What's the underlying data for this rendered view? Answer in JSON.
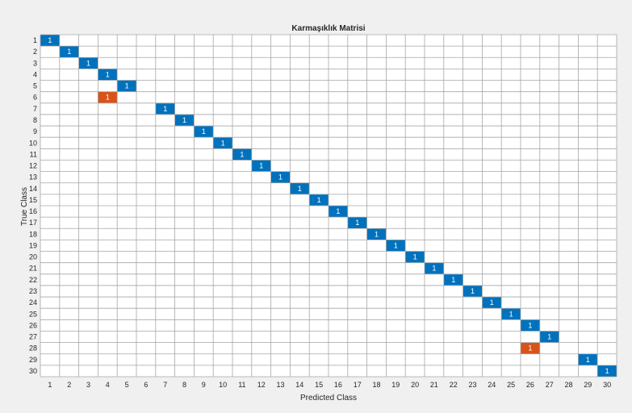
{
  "chart_data": {
    "type": "heatmap",
    "title": "Karmaşıklık Matrisi",
    "xlabel": "Predicted Class",
    "ylabel": "True Class",
    "x_categories": [
      "1",
      "2",
      "3",
      "4",
      "5",
      "6",
      "7",
      "8",
      "9",
      "10",
      "11",
      "12",
      "13",
      "14",
      "15",
      "16",
      "17",
      "18",
      "19",
      "20",
      "21",
      "22",
      "23",
      "24",
      "25",
      "26",
      "27",
      "28",
      "29",
      "30"
    ],
    "y_categories": [
      "1",
      "2",
      "3",
      "4",
      "5",
      "6",
      "7",
      "8",
      "9",
      "10",
      "11",
      "12",
      "13",
      "14",
      "15",
      "16",
      "17",
      "18",
      "19",
      "20",
      "21",
      "22",
      "23",
      "24",
      "25",
      "26",
      "27",
      "28",
      "29",
      "30"
    ],
    "cells": [
      {
        "true": 1,
        "predicted": 1,
        "value": 1
      },
      {
        "true": 2,
        "predicted": 2,
        "value": 1
      },
      {
        "true": 3,
        "predicted": 3,
        "value": 1
      },
      {
        "true": 4,
        "predicted": 4,
        "value": 1
      },
      {
        "true": 5,
        "predicted": 5,
        "value": 1
      },
      {
        "true": 6,
        "predicted": 4,
        "value": 1
      },
      {
        "true": 7,
        "predicted": 7,
        "value": 1
      },
      {
        "true": 8,
        "predicted": 8,
        "value": 1
      },
      {
        "true": 9,
        "predicted": 9,
        "value": 1
      },
      {
        "true": 10,
        "predicted": 10,
        "value": 1
      },
      {
        "true": 11,
        "predicted": 11,
        "value": 1
      },
      {
        "true": 12,
        "predicted": 12,
        "value": 1
      },
      {
        "true": 13,
        "predicted": 13,
        "value": 1
      },
      {
        "true": 14,
        "predicted": 14,
        "value": 1
      },
      {
        "true": 15,
        "predicted": 15,
        "value": 1
      },
      {
        "true": 16,
        "predicted": 16,
        "value": 1
      },
      {
        "true": 17,
        "predicted": 17,
        "value": 1
      },
      {
        "true": 18,
        "predicted": 18,
        "value": 1
      },
      {
        "true": 19,
        "predicted": 19,
        "value": 1
      },
      {
        "true": 20,
        "predicted": 20,
        "value": 1
      },
      {
        "true": 21,
        "predicted": 21,
        "value": 1
      },
      {
        "true": 22,
        "predicted": 22,
        "value": 1
      },
      {
        "true": 23,
        "predicted": 23,
        "value": 1
      },
      {
        "true": 24,
        "predicted": 24,
        "value": 1
      },
      {
        "true": 25,
        "predicted": 25,
        "value": 1
      },
      {
        "true": 26,
        "predicted": 26,
        "value": 1
      },
      {
        "true": 27,
        "predicted": 27,
        "value": 1
      },
      {
        "true": 28,
        "predicted": 26,
        "value": 1
      },
      {
        "true": 29,
        "predicted": 29,
        "value": 1
      },
      {
        "true": 30,
        "predicted": 30,
        "value": 1
      }
    ],
    "colors": {
      "correct": "#0072bd",
      "incorrect": "#d95319",
      "grid": "#a6a6a6",
      "cell_background": "#ffffff",
      "figure_background": "#f0f0f0"
    },
    "grid": true
  }
}
